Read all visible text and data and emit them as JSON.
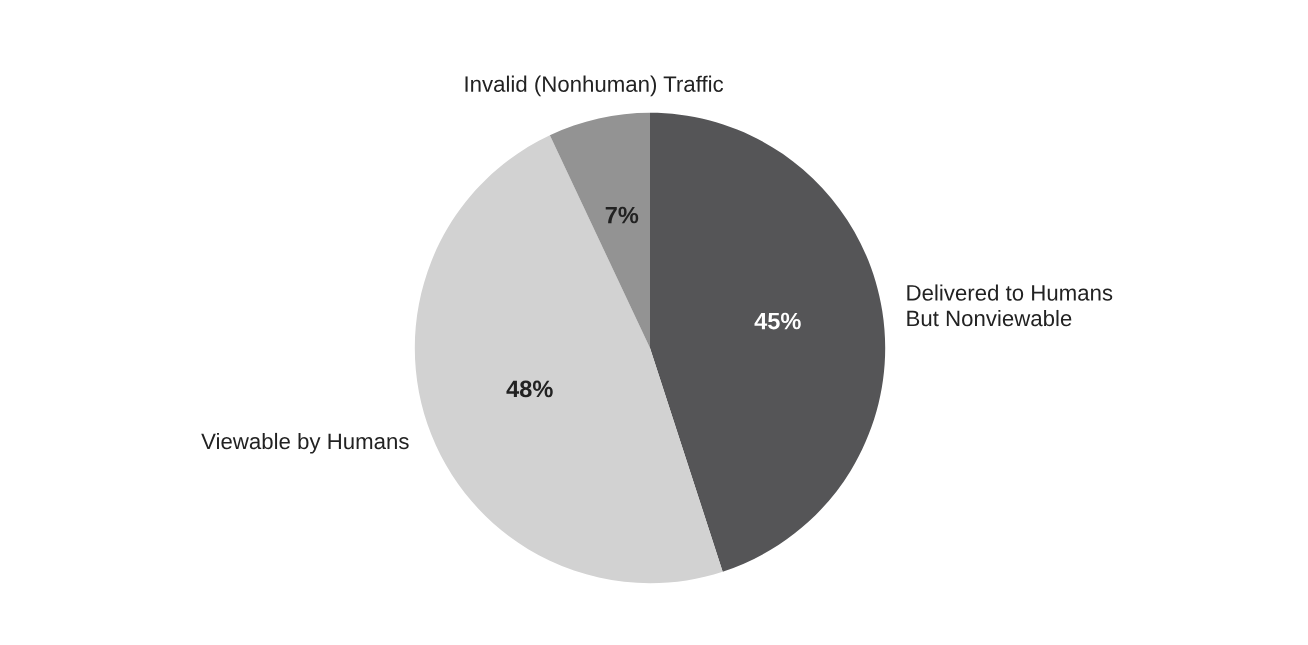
{
  "chart_data": {
    "type": "pie",
    "categories": [
      "Delivered to Humans\nBut Nonviewable",
      "Viewable by Humans",
      "Invalid (Nonhuman) Traffic"
    ],
    "values": [
      45,
      48,
      7
    ],
    "colors": [
      "#555557",
      "#d2d2d2",
      "#939393"
    ],
    "value_labels": [
      "45%",
      "48%",
      "7%"
    ],
    "legend": false
  }
}
